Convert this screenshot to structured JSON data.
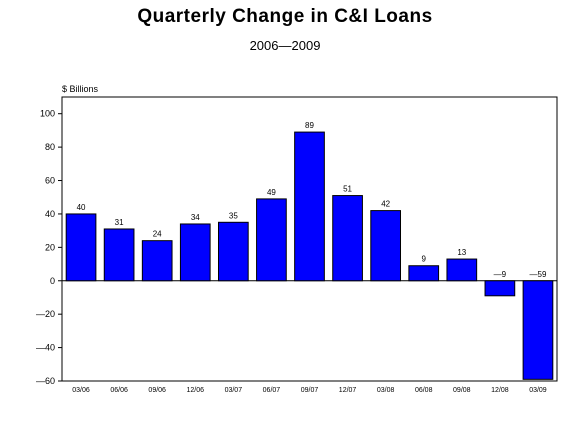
{
  "chart_data": {
    "type": "bar",
    "title": "Quarterly Change  in  C&I  Loans",
    "subtitle": "2006—2009",
    "ylabel": "$ Billions",
    "xlabel": "",
    "categories": [
      "03/06",
      "06/06",
      "09/06",
      "12/06",
      "03/07",
      "06/07",
      "09/07",
      "12/07",
      "03/08",
      "06/08",
      "09/08",
      "12/08",
      "03/09"
    ],
    "values": [
      40,
      31,
      24,
      34,
      35,
      49,
      89,
      51,
      42,
      9,
      13,
      -9,
      -59
    ],
    "data_labels": [
      "40",
      "31",
      "24",
      "34",
      "35",
      "49",
      "89",
      "51",
      "42",
      "9",
      "13",
      "—9",
      "—59"
    ],
    "ylim": [
      -60,
      110
    ],
    "yticks": [
      -60,
      -40,
      -20,
      0,
      20,
      40,
      60,
      80,
      100
    ],
    "ytick_labels": [
      "—60",
      "—40",
      "—20",
      "0",
      "20",
      "40",
      "60",
      "80",
      "100"
    ],
    "grid": false,
    "bar_color": "#0000ff",
    "bar_edge_color": "#000000"
  }
}
